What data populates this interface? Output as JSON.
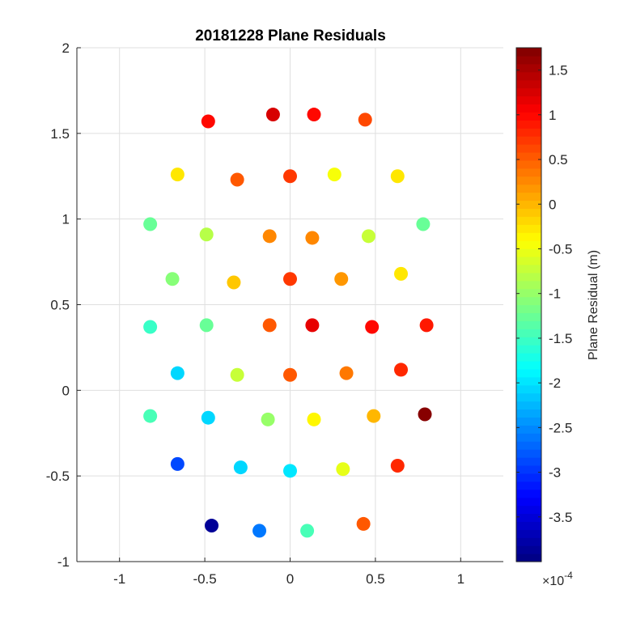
{
  "chart_data": {
    "type": "scatter",
    "title": "20181228 Plane Residuals",
    "xlabel": "",
    "ylabel": "",
    "xlim": [
      -1.25,
      1.25
    ],
    "ylim": [
      -1,
      2
    ],
    "x_ticks": [
      -1,
      -0.5,
      0,
      0.5,
      1
    ],
    "x_tick_labels": [
      "-1",
      "-0.5",
      "0",
      "0.5",
      "1"
    ],
    "y_ticks": [
      -1,
      -0.5,
      0,
      0.5,
      1,
      1.5,
      2
    ],
    "y_tick_labels": [
      "-1",
      "-0.5",
      "0",
      "0.5",
      "1",
      "1.5",
      "2"
    ],
    "grid": true,
    "colormap": "jet",
    "colorbar": {
      "label": "Plane Residual (m)",
      "multiplier": "×10",
      "multiplier_exponent": "-4",
      "range": [
        -4.0,
        1.75
      ],
      "ticks": [
        -3.5,
        -3,
        -2.5,
        -2,
        -1.5,
        -1,
        -0.5,
        0,
        0.5,
        1,
        1.5
      ],
      "tick_labels": [
        "-3.5",
        "-3",
        "-2.5",
        "-2",
        "-1.5",
        "-1",
        "-0.5",
        "0",
        "0.5",
        "1",
        "1.5"
      ],
      "levels": 64
    },
    "points": [
      {
        "x": -0.48,
        "y": 1.57,
        "v": 0.95
      },
      {
        "x": -0.1,
        "y": 1.61,
        "v": 1.25
      },
      {
        "x": 0.14,
        "y": 1.61,
        "v": 1.0
      },
      {
        "x": 0.44,
        "y": 1.58,
        "v": 0.6
      },
      {
        "x": -0.66,
        "y": 1.26,
        "v": -0.3
      },
      {
        "x": -0.31,
        "y": 1.23,
        "v": 0.55
      },
      {
        "x": 0.0,
        "y": 1.25,
        "v": 0.75
      },
      {
        "x": 0.26,
        "y": 1.26,
        "v": -0.45
      },
      {
        "x": 0.63,
        "y": 1.25,
        "v": -0.3
      },
      {
        "x": -0.82,
        "y": 0.97,
        "v": -1.3
      },
      {
        "x": -0.49,
        "y": 0.91,
        "v": -0.8
      },
      {
        "x": -0.12,
        "y": 0.9,
        "v": 0.3
      },
      {
        "x": 0.13,
        "y": 0.89,
        "v": 0.3
      },
      {
        "x": 0.46,
        "y": 0.9,
        "v": -0.7
      },
      {
        "x": 0.78,
        "y": 0.97,
        "v": -1.3
      },
      {
        "x": -0.69,
        "y": 0.65,
        "v": -1.05
      },
      {
        "x": -0.33,
        "y": 0.63,
        "v": -0.05
      },
      {
        "x": 0.0,
        "y": 0.65,
        "v": 0.75
      },
      {
        "x": 0.3,
        "y": 0.65,
        "v": 0.15
      },
      {
        "x": 0.65,
        "y": 0.68,
        "v": -0.25
      },
      {
        "x": -0.82,
        "y": 0.37,
        "v": -1.55
      },
      {
        "x": -0.49,
        "y": 0.38,
        "v": -1.3
      },
      {
        "x": -0.12,
        "y": 0.38,
        "v": 0.55
      },
      {
        "x": 0.13,
        "y": 0.38,
        "v": 1.2
      },
      {
        "x": 0.48,
        "y": 0.37,
        "v": 0.95
      },
      {
        "x": 0.8,
        "y": 0.38,
        "v": 0.9
      },
      {
        "x": -0.66,
        "y": 0.1,
        "v": -2.05
      },
      {
        "x": -0.31,
        "y": 0.09,
        "v": -0.75
      },
      {
        "x": 0.0,
        "y": 0.09,
        "v": 0.5
      },
      {
        "x": 0.33,
        "y": 0.1,
        "v": 0.35
      },
      {
        "x": 0.65,
        "y": 0.12,
        "v": 0.85
      },
      {
        "x": -0.82,
        "y": -0.15,
        "v": -1.45
      },
      {
        "x": -0.48,
        "y": -0.16,
        "v": -2.05
      },
      {
        "x": -0.13,
        "y": -0.17,
        "v": -0.95
      },
      {
        "x": 0.14,
        "y": -0.17,
        "v": -0.35
      },
      {
        "x": 0.49,
        "y": -0.15,
        "v": 0.0
      },
      {
        "x": 0.79,
        "y": -0.14,
        "v": 1.72
      },
      {
        "x": -0.66,
        "y": -0.43,
        "v": -2.9
      },
      {
        "x": -0.29,
        "y": -0.45,
        "v": -2.05
      },
      {
        "x": 0.0,
        "y": -0.47,
        "v": -1.95
      },
      {
        "x": 0.31,
        "y": -0.46,
        "v": -0.55
      },
      {
        "x": 0.63,
        "y": -0.44,
        "v": 0.85
      },
      {
        "x": -0.46,
        "y": -0.79,
        "v": -3.9
      },
      {
        "x": -0.18,
        "y": -0.82,
        "v": -2.6
      },
      {
        "x": 0.1,
        "y": -0.82,
        "v": -1.45
      },
      {
        "x": 0.43,
        "y": -0.78,
        "v": 0.55
      }
    ]
  }
}
